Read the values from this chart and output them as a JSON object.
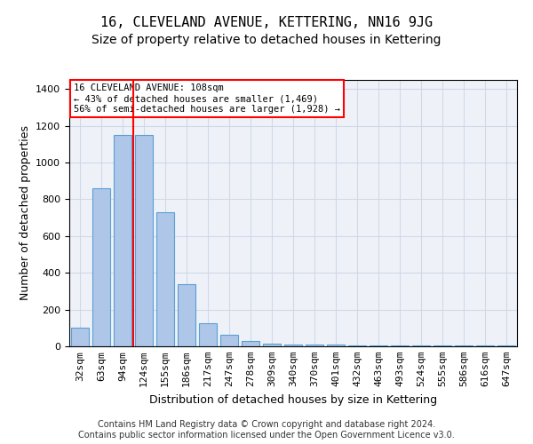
{
  "title": "16, CLEVELAND AVENUE, KETTERING, NN16 9JG",
  "subtitle": "Size of property relative to detached houses in Kettering",
  "xlabel": "Distribution of detached houses by size in Kettering",
  "ylabel": "Number of detached properties",
  "categories": [
    "32sqm",
    "63sqm",
    "94sqm",
    "124sqm",
    "155sqm",
    "186sqm",
    "217sqm",
    "247sqm",
    "278sqm",
    "309sqm",
    "340sqm",
    "370sqm",
    "401sqm",
    "432sqm",
    "463sqm",
    "493sqm",
    "524sqm",
    "555sqm",
    "586sqm",
    "616sqm",
    "647sqm"
  ],
  "values": [
    100,
    860,
    1150,
    1150,
    730,
    340,
    125,
    65,
    30,
    15,
    10,
    10,
    10,
    5,
    5,
    5,
    5,
    5,
    5,
    5,
    5
  ],
  "bar_color": "#aec6e8",
  "bar_edge_color": "#5a9fd4",
  "vline_color": "red",
  "annotation_text": "16 CLEVELAND AVENUE: 108sqm\n← 43% of detached houses are smaller (1,469)\n56% of semi-detached houses are larger (1,928) →",
  "annotation_box_color": "white",
  "annotation_box_edge": "red",
  "ylim": [
    0,
    1450
  ],
  "yticks": [
    0,
    200,
    400,
    600,
    800,
    1000,
    1200,
    1400
  ],
  "grid_color": "#d0d8e8",
  "background_color": "#eef2f8",
  "footer": "Contains HM Land Registry data © Crown copyright and database right 2024.\nContains public sector information licensed under the Open Government Licence v3.0.",
  "title_fontsize": 11,
  "subtitle_fontsize": 10,
  "label_fontsize": 9,
  "tick_fontsize": 8,
  "footer_fontsize": 7
}
